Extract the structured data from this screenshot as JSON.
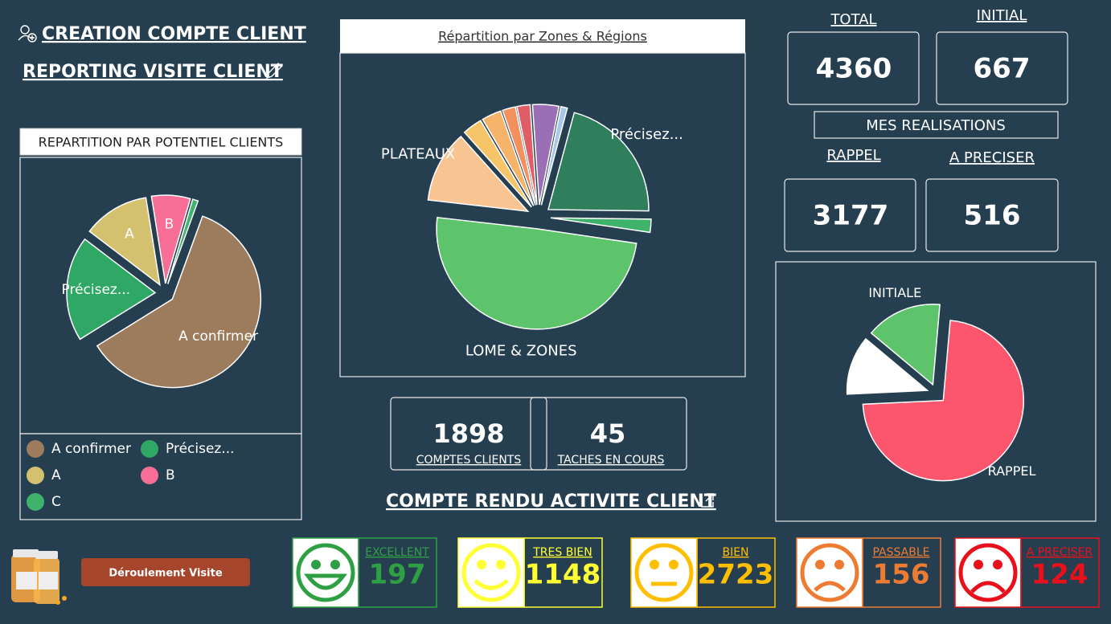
{
  "header": {
    "title": "CREATION COMPTE CLIENT",
    "subtitle": "REPORTING VISITE CLIENT"
  },
  "potentiel_chart": {
    "type": "pie",
    "title": "REPARTITION PAR POTENTIEL CLIENTS",
    "categories": [
      "A confirmer",
      "Précisez...",
      "A",
      "B",
      "C"
    ],
    "values": [
      60,
      19,
      12,
      7,
      1
    ],
    "colors": [
      "#9c7c5c",
      "#2fa866",
      "#d4c170",
      "#f76f96",
      "#3fb36b"
    ],
    "slice_labels": [
      true,
      true,
      true,
      true,
      false
    ]
  },
  "zones_chart": {
    "type": "pie",
    "title": "Répartition par Zones & Régions",
    "categories": [
      "Précisez...",
      null,
      "LOME & ZONES",
      "PLATEAUX",
      null,
      null,
      null,
      null,
      null,
      null
    ],
    "values": [
      20,
      2,
      47,
      11,
      3,
      3,
      2,
      2,
      4,
      1
    ],
    "colors": [
      "#2f7f5c",
      "#3fb36b",
      "#5ec46b",
      "#f7c492",
      "#f6c56a",
      "#f5b46a",
      "#f48f5e",
      "#de5d66",
      "#9b6fb5",
      "#a6c8ea"
    ]
  },
  "kpis": {
    "total": {
      "label": "TOTAL",
      "value": 4360
    },
    "initial": {
      "label": "INITIAL",
      "value": 667
    },
    "section": "MES REALISATIONS",
    "rappel": {
      "label": "RAPPEL",
      "value": 3177
    },
    "a_preciser": {
      "label": "A PRECISER",
      "value": 516
    }
  },
  "cards": [
    {
      "value": 1898,
      "label": "COMPTES CLIENTS"
    },
    {
      "value": 45,
      "label": "TACHES EN COURS"
    }
  ],
  "report_link": "COMPTE RENDU ACTIVITE CLIENT",
  "status_chart": {
    "type": "pie",
    "categories": [
      "RAPPEL",
      null,
      "INITIALE"
    ],
    "values": [
      3177,
      516,
      667
    ],
    "colors": [
      "#fb566e",
      "#ffffff",
      "#5ec46b"
    ]
  },
  "ratings": [
    {
      "label": "EXCELLENT",
      "value": 197,
      "color": "#2ea043"
    },
    {
      "label": "TRES BIEN",
      "value": 1148,
      "color": "#ffff33"
    },
    {
      "label": "BIEN",
      "value": 2723,
      "color": "#ffbf00"
    },
    {
      "label": "PASSABLE",
      "value": 156,
      "color": "#ee7b32"
    },
    {
      "label": "A PRECISER",
      "value": 124,
      "color": "#e8101a"
    }
  ],
  "button": "Déroulement Visite"
}
